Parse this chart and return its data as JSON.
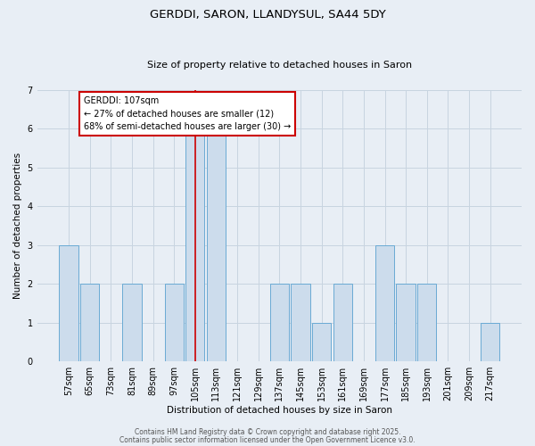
{
  "title": "GERDDI, SARON, LLANDYSUL, SA44 5DY",
  "subtitle": "Size of property relative to detached houses in Saron",
  "xlabel": "Distribution of detached houses by size in Saron",
  "ylabel": "Number of detached properties",
  "categories": [
    "57sqm",
    "65sqm",
    "73sqm",
    "81sqm",
    "89sqm",
    "97sqm",
    "105sqm",
    "113sqm",
    "121sqm",
    "129sqm",
    "137sqm",
    "145sqm",
    "153sqm",
    "161sqm",
    "169sqm",
    "177sqm",
    "185sqm",
    "193sqm",
    "201sqm",
    "209sqm",
    "217sqm"
  ],
  "values": [
    3,
    2,
    0,
    2,
    0,
    2,
    6,
    6,
    0,
    0,
    2,
    2,
    1,
    2,
    0,
    3,
    2,
    2,
    0,
    0,
    1
  ],
  "bar_color": "#ccdcec",
  "bar_edge_color": "#6aaad4",
  "highlight_index": 6,
  "highlight_line_color": "#cc0000",
  "ylim": [
    0,
    7
  ],
  "yticks": [
    0,
    1,
    2,
    3,
    4,
    5,
    6,
    7
  ],
  "annotation_title": "GERDDI: 107sqm",
  "annotation_line1": "← 27% of detached houses are smaller (12)",
  "annotation_line2": "68% of semi-detached houses are larger (30) →",
  "annotation_box_color": "#ffffff",
  "annotation_box_edge_color": "#cc0000",
  "grid_color": "#c8d4e0",
  "background_color": "#e8eef5",
  "title_fontsize": 9.5,
  "subtitle_fontsize": 8,
  "axis_label_fontsize": 7.5,
  "tick_fontsize": 7,
  "annotation_fontsize": 7,
  "footer_line1": "Contains HM Land Registry data © Crown copyright and database right 2025.",
  "footer_line2": "Contains public sector information licensed under the Open Government Licence v3.0.",
  "footer_fontsize": 5.5
}
